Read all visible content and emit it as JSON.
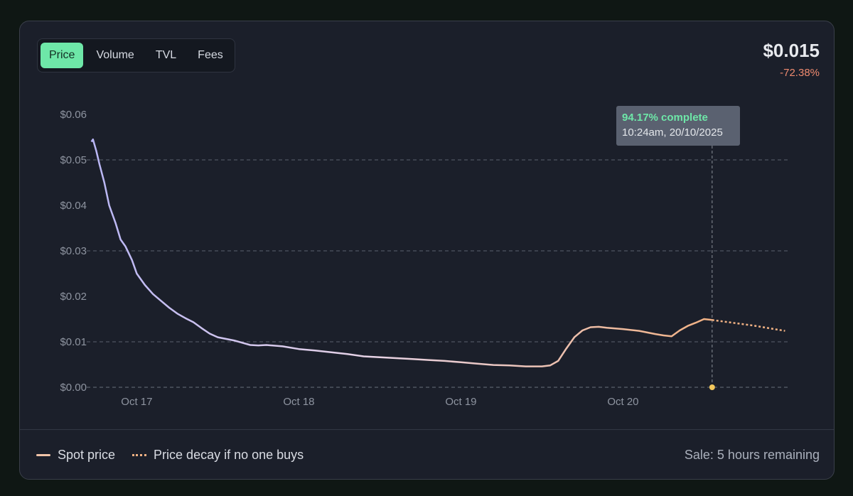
{
  "tabs": [
    {
      "label": "Price",
      "active": true
    },
    {
      "label": "Volume",
      "active": false
    },
    {
      "label": "TVL",
      "active": false
    },
    {
      "label": "Fees",
      "active": false
    }
  ],
  "summary": {
    "price": "$0.015",
    "change": "-72.38%"
  },
  "tooltip": {
    "progress": "94.17% complete",
    "timestamp": "10:24am, 20/10/2025"
  },
  "legend": {
    "spot": "Spot price",
    "decay": "Price decay if no one buys"
  },
  "sale_status": "Sale: 5 hours remaining",
  "colors": {
    "spot_start": "#b9b6f5",
    "spot_end": "#f1b183",
    "decay": "#f1b183",
    "accent": "#6ee7a8",
    "negative": "#ef8a6f",
    "marker": "#f2c75c"
  },
  "chart_data": {
    "type": "line",
    "x_unit": "days",
    "x_ticks": [
      {
        "label": "Oct 17",
        "x": 17
      },
      {
        "label": "Oct 18",
        "x": 18
      },
      {
        "label": "Oct 19",
        "x": 19
      },
      {
        "label": "Oct 20",
        "x": 20
      }
    ],
    "xlim": [
      16.7,
      21.02
    ],
    "y_ticks": [
      "$0.00",
      "$0.01",
      "$0.02",
      "$0.03",
      "$0.04",
      "$0.05",
      "$0.06"
    ],
    "ylim": [
      0,
      0.06
    ],
    "grid": "horizontal dashed",
    "series": [
      {
        "name": "Spot price",
        "style": "solid",
        "points": [
          [
            16.72,
            0.054
          ],
          [
            16.73,
            0.0545
          ],
          [
            16.75,
            0.052
          ],
          [
            16.77,
            0.049
          ],
          [
            16.8,
            0.045
          ],
          [
            16.83,
            0.04
          ],
          [
            16.87,
            0.036
          ],
          [
            16.9,
            0.0325
          ],
          [
            16.93,
            0.031
          ],
          [
            16.97,
            0.028
          ],
          [
            17.0,
            0.025
          ],
          [
            17.05,
            0.0225
          ],
          [
            17.1,
            0.0205
          ],
          [
            17.15,
            0.019
          ],
          [
            17.2,
            0.0175
          ],
          [
            17.25,
            0.0162
          ],
          [
            17.3,
            0.0152
          ],
          [
            17.35,
            0.0143
          ],
          [
            17.4,
            0.013
          ],
          [
            17.45,
            0.0118
          ],
          [
            17.5,
            0.011
          ],
          [
            17.6,
            0.0103
          ],
          [
            17.7,
            0.0093
          ],
          [
            17.75,
            0.0092
          ],
          [
            17.8,
            0.0093
          ],
          [
            17.9,
            0.009
          ],
          [
            18.0,
            0.0084
          ],
          [
            18.1,
            0.0081
          ],
          [
            18.2,
            0.0077
          ],
          [
            18.3,
            0.0073
          ],
          [
            18.4,
            0.0068
          ],
          [
            18.5,
            0.0066
          ],
          [
            18.6,
            0.0064
          ],
          [
            18.7,
            0.0062
          ],
          [
            18.8,
            0.006
          ],
          [
            18.9,
            0.0058
          ],
          [
            19.0,
            0.0055
          ],
          [
            19.1,
            0.0052
          ],
          [
            19.2,
            0.0049
          ],
          [
            19.3,
            0.0048
          ],
          [
            19.4,
            0.0046
          ],
          [
            19.5,
            0.0046
          ],
          [
            19.55,
            0.0048
          ],
          [
            19.6,
            0.0058
          ],
          [
            19.65,
            0.0085
          ],
          [
            19.7,
            0.011
          ],
          [
            19.75,
            0.0125
          ],
          [
            19.8,
            0.0132
          ],
          [
            19.85,
            0.0133
          ],
          [
            19.9,
            0.0131
          ],
          [
            20.0,
            0.0128
          ],
          [
            20.1,
            0.0124
          ],
          [
            20.2,
            0.0117
          ],
          [
            20.25,
            0.0114
          ],
          [
            20.3,
            0.0112
          ],
          [
            20.35,
            0.0125
          ],
          [
            20.4,
            0.0135
          ],
          [
            20.45,
            0.0142
          ],
          [
            20.5,
            0.015
          ],
          [
            20.55,
            0.0148
          ]
        ]
      },
      {
        "name": "Price decay if no one buys",
        "style": "dotted",
        "points": [
          [
            20.55,
            0.0148
          ],
          [
            20.8,
            0.0136
          ],
          [
            21.0,
            0.0124
          ]
        ]
      }
    ],
    "marker": {
      "x": 20.55,
      "y_top": 0.0575,
      "y_bottom": 0
    }
  }
}
